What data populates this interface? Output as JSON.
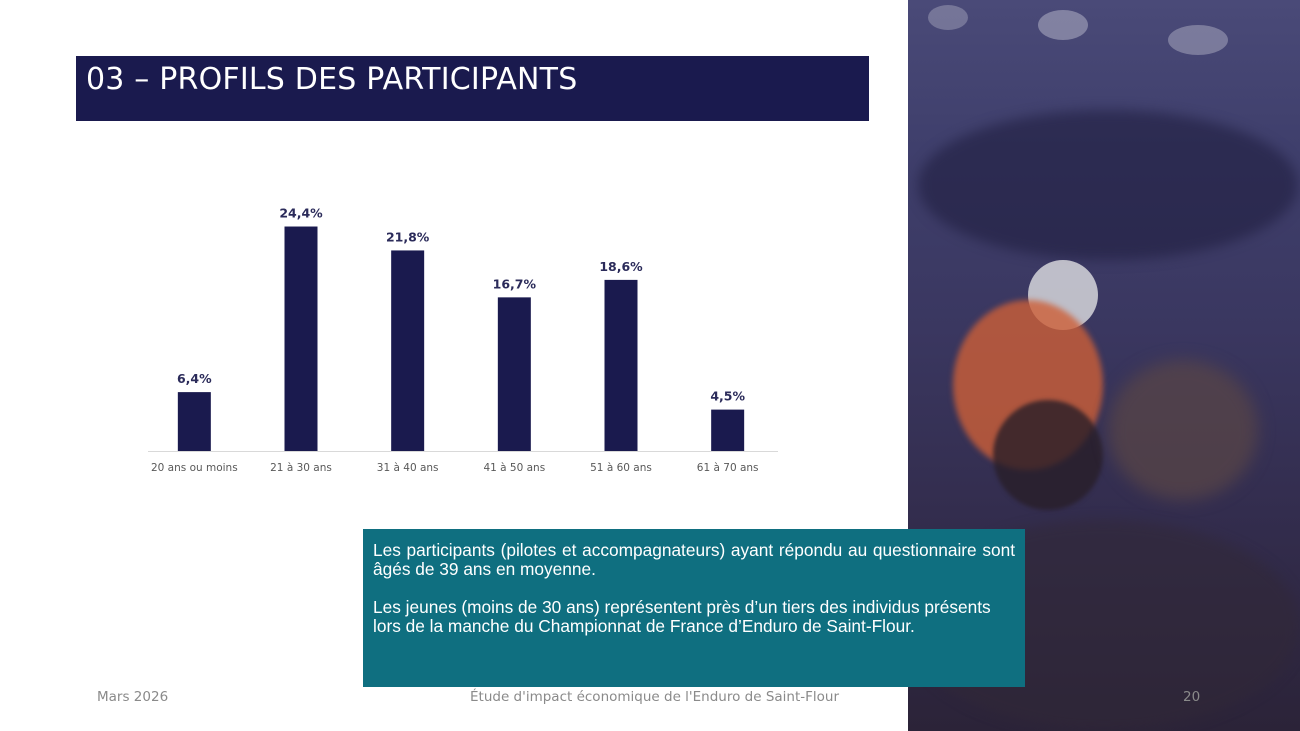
{
  "slide": {
    "title": "03 – PROFILS DES PARTICIPANTS",
    "colors": {
      "title_bar": "#1a1a4e",
      "bars": "#1a1a4e",
      "note_box": "#0f6f80"
    }
  },
  "chart_data": {
    "type": "bar",
    "categories": [
      "20 ans ou moins",
      "21 à 30 ans",
      "31 à 40 ans",
      "41 à 50 ans",
      "51 à 60 ans",
      "61 à 70 ans"
    ],
    "values": [
      6.4,
      24.4,
      21.8,
      16.7,
      18.6,
      4.5
    ],
    "value_labels": [
      "6,4%",
      "24,4%",
      "21,8%",
      "16,7%",
      "18,6%",
      "4,5%"
    ],
    "title": "",
    "xlabel": "",
    "ylabel": "",
    "ylim": [
      0,
      25
    ],
    "grid": false,
    "legend": "none"
  },
  "note": {
    "p1": "Les participants (pilotes et accompagnateurs) ayant répondu au questionnaire sont âgés de 39 ans en moyenne.",
    "p2": "Les jeunes (moins de 30 ans) représentent près d’un tiers des individus présents lors de la manche du Championnat de France d’Enduro de Saint-Flour."
  },
  "footer": {
    "date": "Mars 2026",
    "center": "Étude d'impact économique de l'Enduro de Saint-Flour",
    "page": "20"
  }
}
